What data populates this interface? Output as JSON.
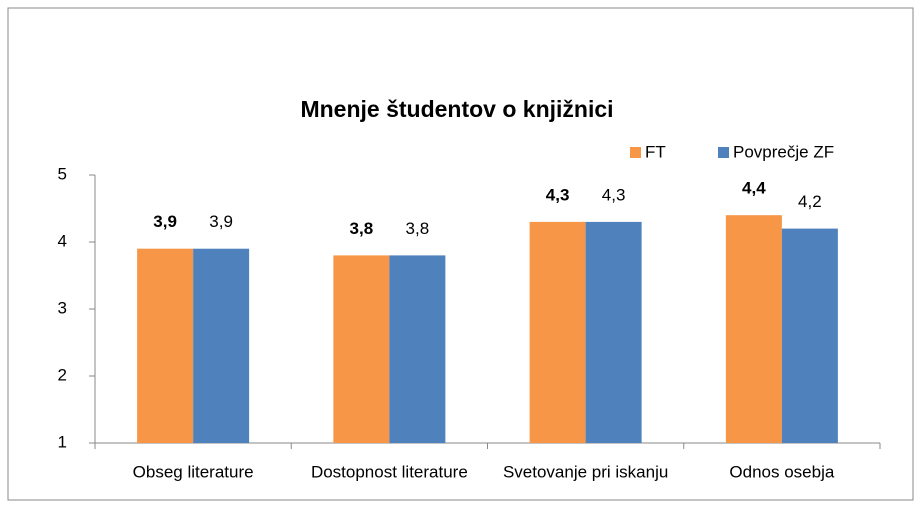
{
  "chart_data": {
    "type": "bar",
    "title": "Mnenje študentov o knjižnici",
    "categories": [
      "Obseg literature",
      "Dostopnost literature",
      "Svetovanje pri iskanju",
      "Odnos osebja"
    ],
    "series": [
      {
        "name": "FT",
        "color": "#f79646",
        "values": [
          3.9,
          3.8,
          4.3,
          4.4
        ],
        "value_labels": [
          "3,9",
          "3,8",
          "4,3",
          "4,4"
        ]
      },
      {
        "name": "Povprečje ZF",
        "color": "#4f81bd",
        "values": [
          3.9,
          3.8,
          4.3,
          4.2
        ],
        "value_labels": [
          "3,9",
          "3,8",
          "4,3",
          "4,2"
        ]
      }
    ],
    "ylim": [
      1,
      5
    ],
    "yticks": [
      1,
      2,
      3,
      4,
      5
    ],
    "grid": false,
    "legend": "top-right"
  }
}
